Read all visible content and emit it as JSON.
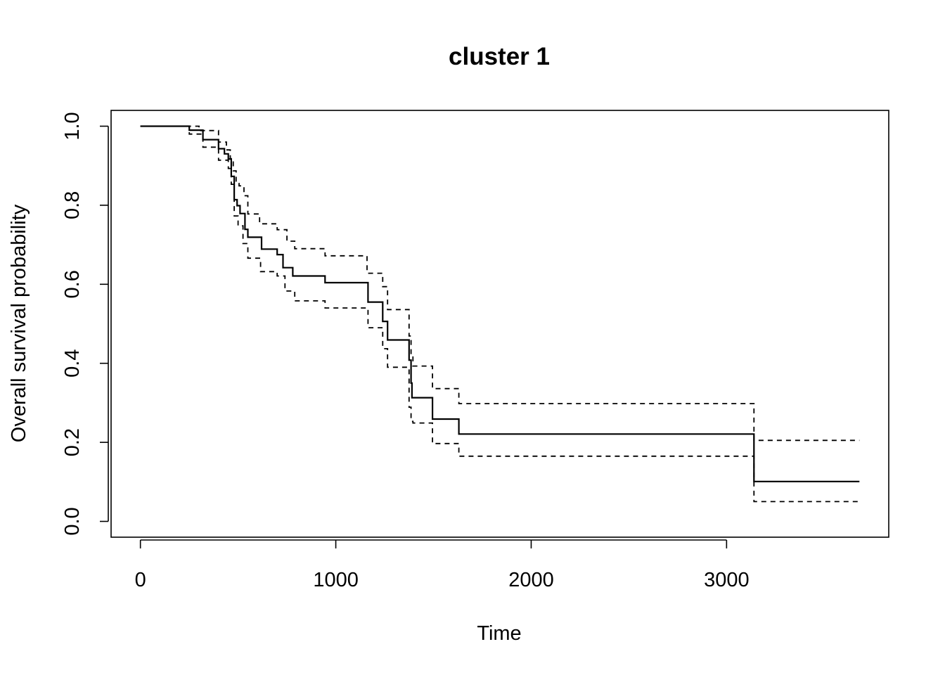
{
  "chart_data": {
    "type": "line",
    "title": "cluster 1",
    "xlabel": "Time",
    "ylabel": "Overall survival probability",
    "xlim": [
      -150,
      3830
    ],
    "ylim": [
      -0.04,
      1.04
    ],
    "xticks": [
      0,
      1000,
      2000,
      3000
    ],
    "xtick_labels": [
      "0",
      "1000",
      "2000",
      "3000"
    ],
    "yticks": [
      0.0,
      0.2,
      0.4,
      0.6,
      0.8,
      1.0
    ],
    "ytick_labels": [
      "0.0",
      "0.2",
      "0.4",
      "0.6",
      "0.8",
      "1.0"
    ],
    "grid": false,
    "legend": "none",
    "series": [
      {
        "style": "solid",
        "x": [
          0,
          250,
          320,
          400,
          430,
          450,
          465,
          480,
          495,
          510,
          535,
          550,
          570,
          620,
          700,
          730,
          780,
          945,
          1165,
          1240,
          1265,
          1375,
          1385,
          1390,
          1495,
          1630,
          3140,
          3680
        ],
        "y": [
          1.0,
          0.99,
          0.966,
          0.943,
          0.93,
          0.917,
          0.873,
          0.814,
          0.799,
          0.779,
          0.739,
          0.719,
          0.719,
          0.689,
          0.675,
          0.642,
          0.621,
          0.604,
          0.555,
          0.506,
          0.459,
          0.408,
          0.35,
          0.313,
          0.259,
          0.221,
          0.101,
          0.101
        ]
      },
      {
        "style": "dashed",
        "x": [
          0,
          250,
          300,
          400,
          440,
          460,
          475,
          490,
          505,
          530,
          550,
          610,
          700,
          750,
          790,
          945,
          1160,
          1240,
          1265,
          1375,
          1385,
          1395,
          1495,
          1630,
          3140,
          3680
        ],
        "y": [
          1.0,
          1.0,
          0.989,
          0.96,
          0.94,
          0.918,
          0.887,
          0.855,
          0.849,
          0.824,
          0.778,
          0.753,
          0.738,
          0.709,
          0.69,
          0.672,
          0.628,
          0.594,
          0.536,
          0.469,
          0.425,
          0.393,
          0.336,
          0.298,
          0.205,
          0.205
        ]
      },
      {
        "style": "dashed",
        "x": [
          0,
          250,
          320,
          400,
          450,
          465,
          480,
          500,
          525,
          550,
          615,
          700,
          740,
          790,
          945,
          1165,
          1240,
          1265,
          1375,
          1385,
          1395,
          1495,
          1630,
          3140,
          3680
        ],
        "y": [
          1.0,
          0.98,
          0.947,
          0.914,
          0.893,
          0.853,
          0.773,
          0.748,
          0.703,
          0.666,
          0.632,
          0.621,
          0.583,
          0.558,
          0.54,
          0.49,
          0.437,
          0.39,
          0.289,
          0.253,
          0.249,
          0.197,
          0.165,
          0.05,
          0.05
        ]
      }
    ]
  }
}
